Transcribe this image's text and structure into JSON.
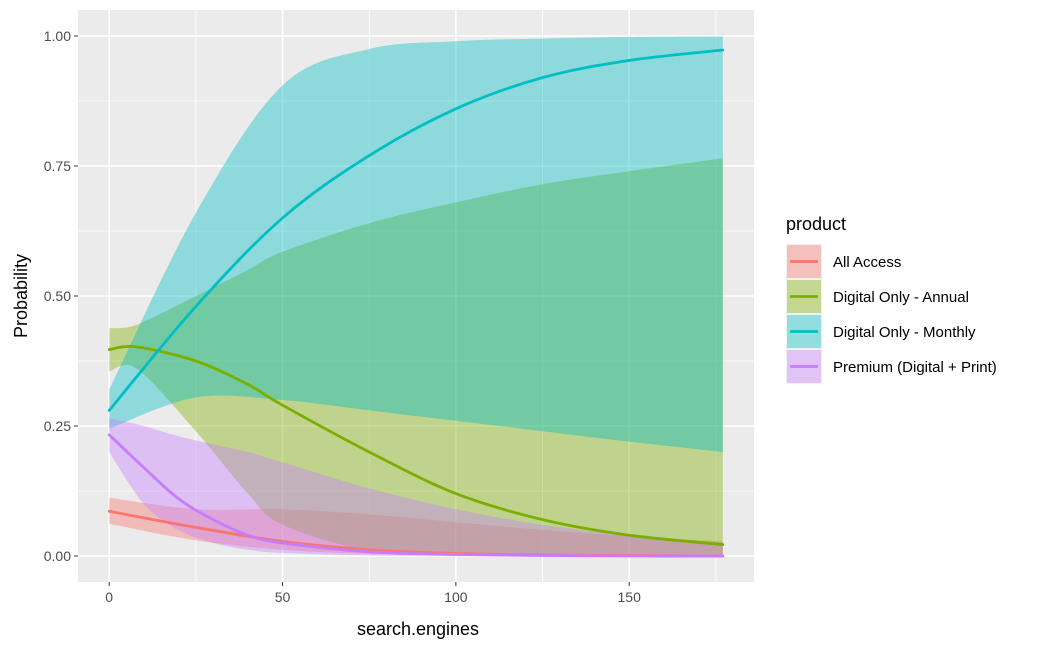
{
  "chart_data": {
    "type": "line",
    "title": "",
    "xlabel": "search.engines",
    "ylabel": "Probability",
    "xlim": [
      -9,
      186
    ],
    "ylim": [
      -0.05,
      1.05
    ],
    "x_ticks": [
      0,
      50,
      100,
      150
    ],
    "x_tick_labels": [
      "0",
      "50",
      "100",
      "150"
    ],
    "y_ticks": [
      0,
      0.25,
      0.5,
      0.75,
      1.0
    ],
    "y_tick_labels": [
      "0.00",
      "0.25",
      "0.50",
      "0.75",
      "1.00"
    ],
    "grid": true,
    "legend": {
      "title": "product",
      "position": "right"
    },
    "series": [
      {
        "name": "All Access",
        "color": "#F8766D",
        "x": [
          0,
          25,
          50,
          75,
          100,
          125,
          150,
          177
        ],
        "y": [
          0.086,
          0.055,
          0.028,
          0.012,
          0.005,
          0.002,
          0.001,
          0.0
        ],
        "lower": [
          0.062,
          0.03,
          0.012,
          0.004,
          0.001,
          0.0,
          0.0,
          0.0
        ],
        "upper": [
          0.112,
          0.09,
          0.09,
          0.08,
          0.065,
          0.05,
          0.038,
          0.028
        ]
      },
      {
        "name": "Digital Only - Annual",
        "color": "#7CAE00",
        "x": [
          0,
          8,
          25,
          40,
          50,
          75,
          100,
          125,
          150,
          177
        ],
        "y": [
          0.397,
          0.402,
          0.375,
          0.33,
          0.29,
          0.2,
          0.12,
          0.07,
          0.04,
          0.022
        ],
        "lower": [
          0.355,
          0.36,
          0.24,
          0.12,
          0.06,
          0.01,
          0.002,
          0.0,
          0.0,
          0.0
        ],
        "upper": [
          0.438,
          0.445,
          0.5,
          0.55,
          0.585,
          0.64,
          0.68,
          0.715,
          0.74,
          0.765
        ]
      },
      {
        "name": "Digital Only - Monthly",
        "color": "#00BFC4",
        "x": [
          0,
          25,
          50,
          75,
          100,
          125,
          150,
          177
        ],
        "y": [
          0.28,
          0.48,
          0.65,
          0.77,
          0.86,
          0.92,
          0.953,
          0.973
        ],
        "lower": [
          0.245,
          0.305,
          0.3,
          0.28,
          0.26,
          0.24,
          0.22,
          0.2
        ],
        "upper": [
          0.32,
          0.66,
          0.905,
          0.975,
          0.99,
          0.995,
          0.998,
          0.999
        ]
      },
      {
        "name": "Premium (Digital + Print)",
        "color": "#C77CFF",
        "x": [
          0,
          10,
          20,
          30,
          40,
          50,
          75,
          100,
          125,
          150,
          177
        ],
        "y": [
          0.233,
          0.17,
          0.11,
          0.07,
          0.04,
          0.025,
          0.008,
          0.003,
          0.001,
          0.0,
          0.0
        ],
        "lower": [
          0.2,
          0.1,
          0.05,
          0.025,
          0.012,
          0.006,
          0.001,
          0.0,
          0.0,
          0.0,
          0.0
        ],
        "upper": [
          0.265,
          0.25,
          0.23,
          0.215,
          0.2,
          0.18,
          0.13,
          0.09,
          0.06,
          0.04,
          0.025
        ]
      }
    ]
  }
}
